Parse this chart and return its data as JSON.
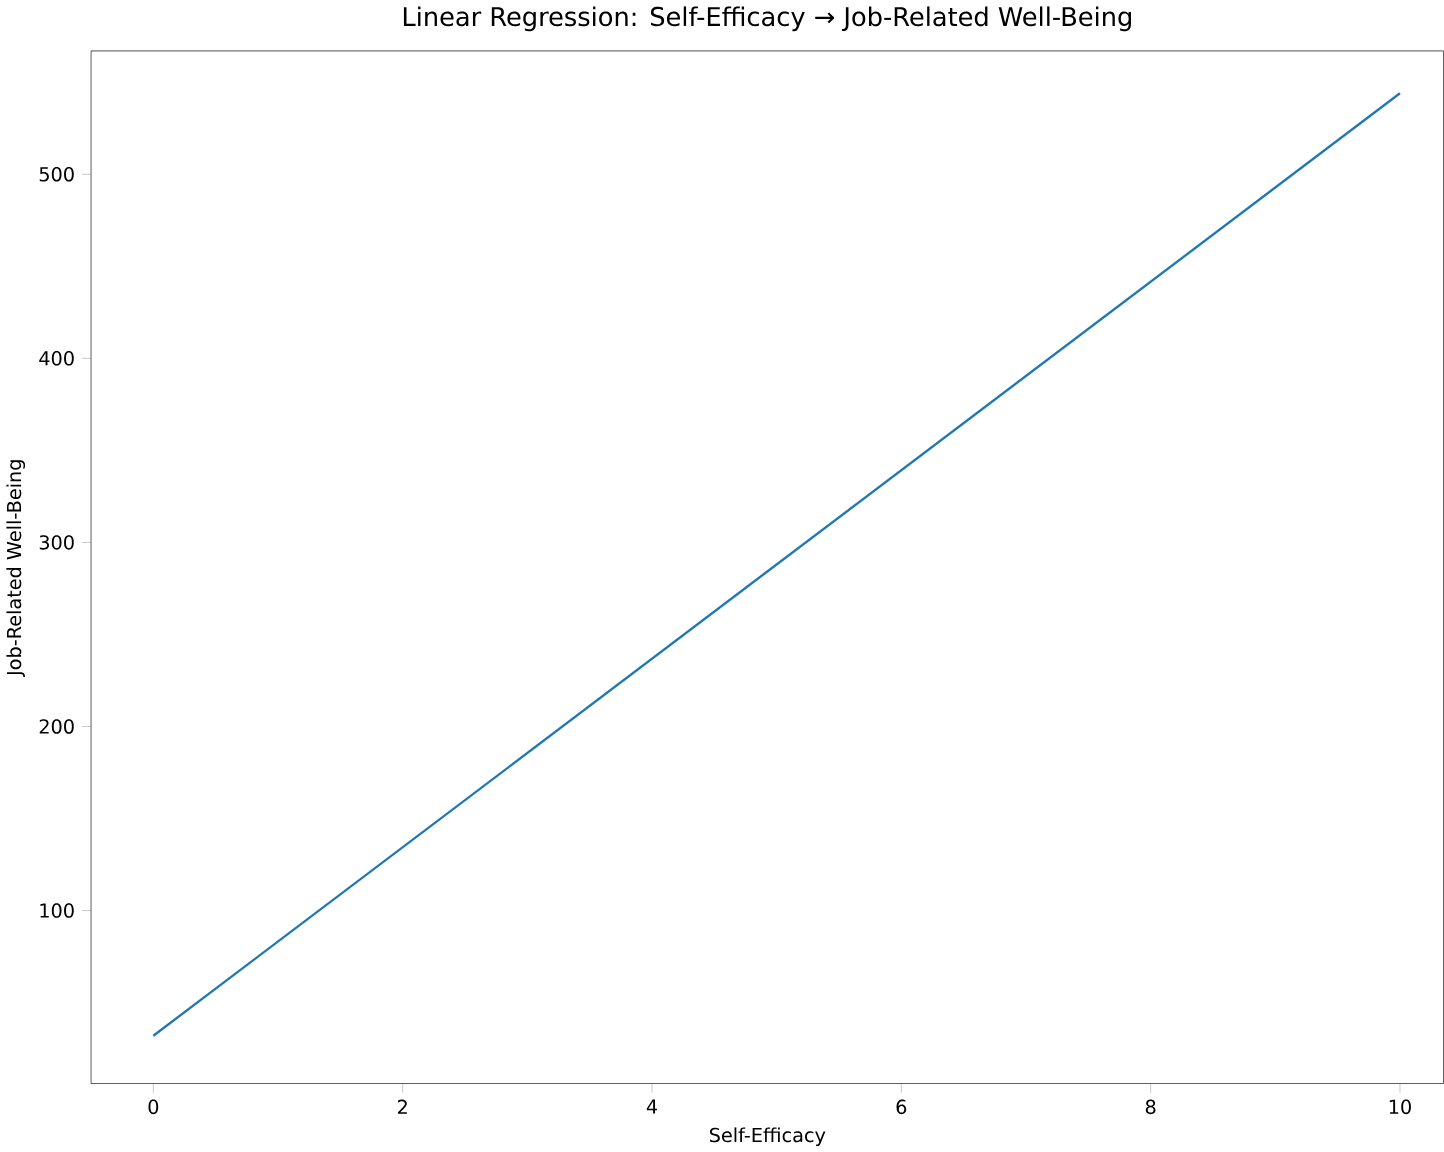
{
  "chart_data": {
    "type": "line",
    "title": "Linear Regression: Self-Efficacy → Job-Related Well-Being",
    "xlabel": "Self-Efficacy",
    "ylabel": "Job-Related Well-Being",
    "x": [
      0,
      10
    ],
    "series": [
      {
        "color": "#1f77b4",
        "values": [
          32,
          544
        ]
      }
    ],
    "xlim": [
      -0.5,
      10.35
    ],
    "ylim": [
      6,
      567
    ],
    "xticks": [
      0,
      2,
      4,
      6,
      8,
      10
    ],
    "yticks": [
      100,
      200,
      300,
      400,
      500
    ],
    "grid": false
  }
}
